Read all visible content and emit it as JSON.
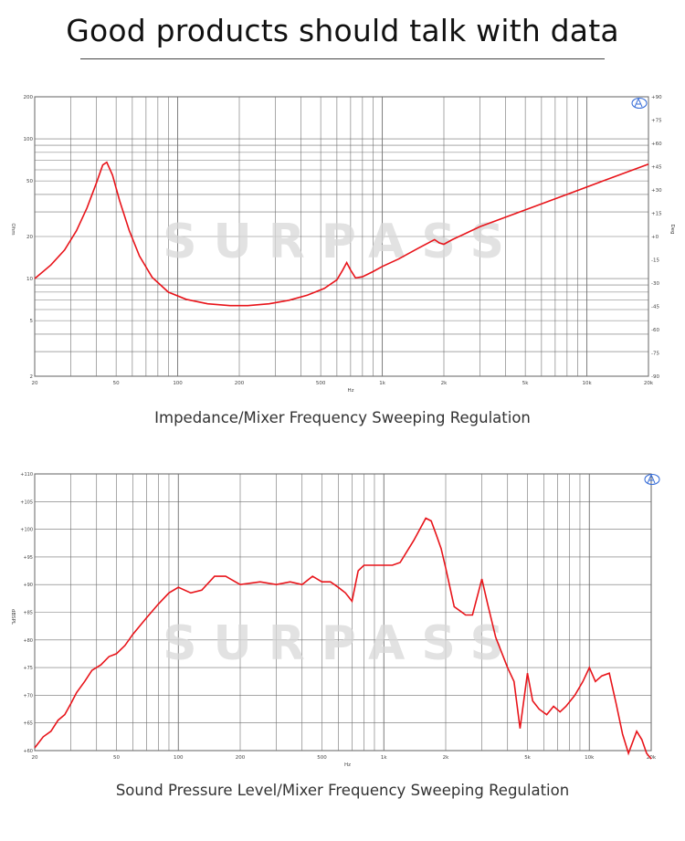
{
  "header": {
    "title": "Good products should talk with data"
  },
  "watermark": {
    "text": "SURPASS"
  },
  "charts": {
    "impedance": {
      "caption": "Impedance/Mixer Frequency Sweeping Regulation"
    },
    "spl": {
      "caption": "Sound Pressure Level/Mixer Frequency Sweeping Regulation"
    }
  },
  "chart_data": [
    {
      "type": "line",
      "scale": "log-log",
      "xlabel": "Hz",
      "ylabel": "Ohm",
      "y2label": "Deg",
      "xlim": [
        20,
        20000
      ],
      "ylim": [
        2,
        200
      ],
      "y2lim": [
        -90,
        90
      ],
      "grid": true,
      "x_ticks": [
        "20",
        "50",
        "100",
        "200",
        "500",
        "1k",
        "2k",
        "5k",
        "10k",
        "20k"
      ],
      "y_ticks": [
        "200",
        "100",
        "50",
        "20",
        "10",
        "5",
        "2"
      ],
      "y2_ticks": [
        "+90",
        "+75",
        "+60",
        "+45",
        "+30",
        "+15",
        "+0",
        "-15",
        "-30",
        "-45",
        "-60",
        "-75",
        "-90"
      ],
      "line_color": "#e8141a",
      "series": [
        {
          "x": [
            20,
            24,
            28,
            32,
            36,
            40,
            43,
            45,
            48,
            52,
            58,
            65,
            75,
            90,
            110,
            140,
            180,
            220,
            280,
            350,
            430,
            520,
            600,
            640,
            670,
            700,
            740,
            800,
            900,
            1000,
            1200,
            1500,
            1800,
            1900,
            2000,
            2200,
            3000,
            5000,
            8000,
            12000,
            20000
          ],
          "y": [
            10,
            12.5,
            16,
            22,
            32,
            48,
            65,
            68,
            55,
            36,
            22,
            14.5,
            10.2,
            8.0,
            7.1,
            6.6,
            6.4,
            6.4,
            6.6,
            7.0,
            7.6,
            8.5,
            9.8,
            11.5,
            13,
            11.5,
            10.1,
            10.3,
            11.2,
            12.2,
            13.8,
            16.5,
            19,
            18,
            17.6,
            19,
            23.5,
            31,
            40,
            50,
            66
          ]
        }
      ]
    },
    {
      "type": "line",
      "scale": "log-x",
      "xlabel": "Hz",
      "ylabel": "dBSPL",
      "xlim": [
        20,
        20000
      ],
      "ylim": [
        60,
        110
      ],
      "grid": true,
      "x_ticks": [
        "20",
        "50",
        "100",
        "200",
        "500",
        "1k",
        "2k",
        "5k",
        "10k",
        "20k"
      ],
      "y_ticks": [
        "+110",
        "+105",
        "+100",
        "+95",
        "+90",
        "+85",
        "+80",
        "+75",
        "+70",
        "+65",
        "+60"
      ],
      "line_color": "#e8141a",
      "series": [
        {
          "x": [
            20,
            22,
            24,
            26,
            28,
            30,
            32,
            35,
            38,
            42,
            46,
            50,
            55,
            60,
            70,
            80,
            90,
            100,
            115,
            130,
            150,
            170,
            200,
            250,
            300,
            350,
            400,
            450,
            500,
            550,
            600,
            650,
            700,
            750,
            800,
            900,
            1000,
            1100,
            1200,
            1400,
            1600,
            1700,
            1800,
            1900,
            2000,
            2200,
            2500,
            2700,
            3000,
            3200,
            3500,
            4000,
            4300,
            4600,
            5000,
            5300,
            5700,
            6200,
            6700,
            7200,
            7700,
            8500,
            9300,
            10000,
            10700,
            11500,
            12500,
            13500,
            14500,
            15500,
            17000,
            18000,
            19000,
            20000
          ],
          "y": [
            60.5,
            62.5,
            63.5,
            65.5,
            66.5,
            68.5,
            70.5,
            72.5,
            74.5,
            75.5,
            77,
            77.5,
            79,
            81,
            84,
            86.5,
            88.5,
            89.5,
            88.5,
            89,
            91.5,
            91.5,
            90,
            90.5,
            90,
            90.5,
            90,
            91.5,
            90.5,
            90.5,
            89.5,
            88.5,
            87,
            92.5,
            93.5,
            93.5,
            93.5,
            93.5,
            94,
            98,
            102,
            101.5,
            99,
            96.5,
            93,
            86,
            84.5,
            84.5,
            91,
            86.5,
            80.5,
            75,
            72.5,
            64,
            74,
            69,
            67.5,
            66.5,
            68,
            67,
            68,
            70,
            72.5,
            75,
            72.5,
            73.5,
            74,
            68.5,
            63,
            59.5,
            63.5,
            62,
            59.5,
            58.5
          ]
        }
      ]
    }
  ]
}
